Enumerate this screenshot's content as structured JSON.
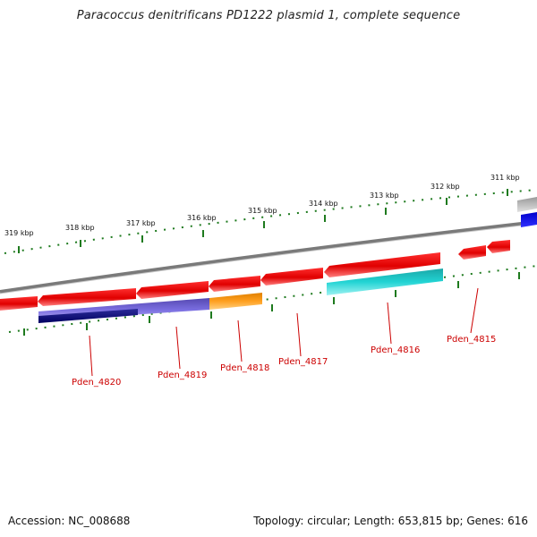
{
  "title": "Paracoccus denitrificans PD1222 plasmid 1, complete sequence",
  "accession": "Accession: NC_008688",
  "summary": "Topology: circular; Length: 653,815 bp; Genes: 616",
  "ticks": [
    "319 kbp",
    "318 kbp",
    "317 kbp",
    "316 kbp",
    "315 kbp",
    "314 kbp",
    "313 kbp",
    "312 kbp",
    "311 kbp"
  ],
  "gene_labels": [
    "Pden_4820",
    "Pden_4819",
    "Pden_4818",
    "Pden_4817",
    "Pden_4816",
    "Pden_4815"
  ],
  "colors": {
    "backbone": "#8c8c8c",
    "gene": "#ee1111",
    "tick": "#1e7a1e",
    "label": "#cc0000"
  }
}
